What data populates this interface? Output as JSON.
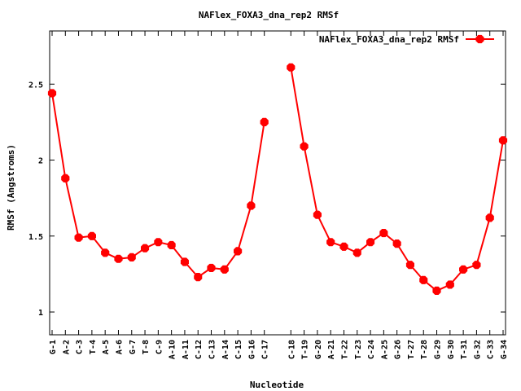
{
  "chart_data": {
    "type": "line",
    "title": "NAFlex_FOXA3_dna_rep2 RMSf",
    "xlabel": "Nucleotide",
    "ylabel": "RMSf (Angstroms)",
    "ylim": [
      0.85,
      2.85
    ],
    "yticks": [
      "1",
      "1.5",
      "2",
      "2.5"
    ],
    "grid": false,
    "legend_position": "top-right",
    "color": "#ff0000",
    "categories": [
      "G-1",
      "A-2",
      "C-3",
      "T-4",
      "A-5",
      "A-6",
      "G-7",
      "T-8",
      "C-9",
      "A-10",
      "A-11",
      "C-12",
      "C-13",
      "A-14",
      "C-15",
      "G-16",
      "C-17",
      "C-18",
      "T-19",
      "G-20",
      "A-21",
      "T-22",
      "T-23",
      "C-24",
      "A-25",
      "G-26",
      "T-27",
      "T-28",
      "G-29",
      "G-30",
      "T-31",
      "G-32",
      "C-33",
      "G-34"
    ],
    "series": [
      {
        "name": "NAFlex_FOXA3_dna_rep2 RMSf",
        "segments": [
          [
            2.44,
            1.88,
            1.49,
            1.5,
            1.39,
            1.35,
            1.36,
            1.42,
            1.46,
            1.44,
            1.33,
            1.23,
            1.29,
            1.28,
            1.4,
            1.7,
            2.25
          ],
          [
            2.61,
            2.09,
            1.64,
            1.46,
            1.43,
            1.39,
            1.46,
            1.52,
            1.45,
            1.31,
            1.21,
            1.14,
            1.18,
            1.28,
            1.31,
            1.62,
            2.13
          ]
        ]
      }
    ]
  }
}
